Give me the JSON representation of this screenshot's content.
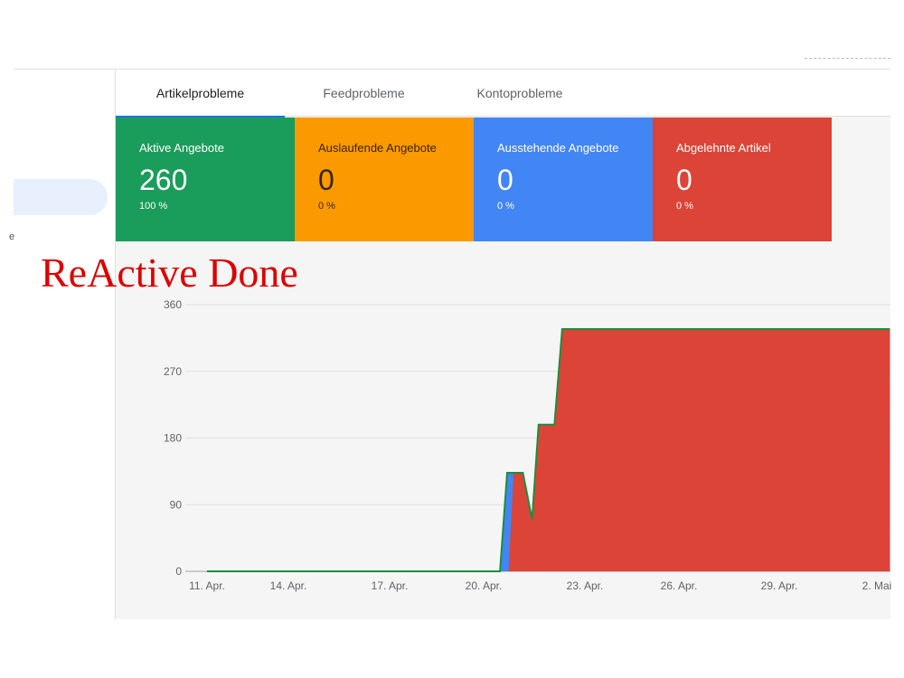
{
  "tabs": [
    {
      "label": "Artikelprobleme",
      "active": true
    },
    {
      "label": "Feedprobleme"
    },
    {
      "label": "Kontoprobleme"
    }
  ],
  "sidebar": {
    "stray_text": "e"
  },
  "cards": [
    {
      "title": "Aktive Angebote",
      "value": "260",
      "percent": "100 %",
      "color": "#1a9c5b",
      "text": "#ffffff"
    },
    {
      "title": "Auslaufende Angebote",
      "value": "0",
      "percent": "0 %",
      "color": "#fb9a00",
      "text": "#3a2400"
    },
    {
      "title": "Ausstehende Angebote",
      "value": "0",
      "percent": "0 %",
      "color": "#4285f4",
      "text": "#ffffff"
    },
    {
      "title": "Abgelehnte Artikel",
      "value": "0",
      "percent": "0 %",
      "color": "#db4437",
      "text": "#ffffff"
    }
  ],
  "overlay": "ReActive Done",
  "chart_data": {
    "type": "area",
    "ylim": [
      0,
      360
    ],
    "yticks": [
      "0",
      "90",
      "180",
      "270",
      "360"
    ],
    "xticks": [
      "11. Apr.",
      "14. Apr.",
      "17. Apr.",
      "20. Apr.",
      "23. Apr.",
      "26. Apr.",
      "29. Apr.",
      "2. Mai"
    ],
    "grid": true,
    "series": [
      {
        "color": "#4285f4",
        "kind": "area",
        "points": [
          [
            "04-11 00:00",
            0
          ],
          [
            "04-20 07:30",
            0
          ],
          [
            "04-20 13:00",
            133
          ],
          [
            "04-21 01:00",
            133
          ],
          [
            "04-21 08:00",
            70
          ],
          [
            "04-21 13:00",
            198
          ],
          [
            "04-22 01:00",
            198
          ],
          [
            "04-22 07:00",
            327
          ],
          [
            "05-02 17:00",
            327
          ]
        ]
      },
      {
        "color": "#db4437",
        "kind": "area",
        "points": [
          [
            "04-11 00:00",
            0
          ],
          [
            "04-20 14:00",
            0
          ],
          [
            "04-20 18:00",
            133
          ],
          [
            "04-21 01:00",
            133
          ],
          [
            "04-21 08:00",
            70
          ],
          [
            "04-21 13:00",
            198
          ],
          [
            "04-22 01:00",
            198
          ],
          [
            "04-22 07:00",
            327
          ],
          [
            "05-02 17:00",
            327
          ]
        ]
      },
      {
        "color": "#1e8e3e",
        "kind": "line",
        "points": [
          [
            "04-11 00:00",
            0
          ],
          [
            "04-20 07:30",
            0
          ],
          [
            "04-20 13:00",
            133
          ],
          [
            "04-21 01:00",
            133
          ],
          [
            "04-21 08:00",
            70
          ],
          [
            "04-21 13:00",
            198
          ],
          [
            "04-22 01:00",
            198
          ],
          [
            "04-22 07:00",
            327
          ],
          [
            "05-02 17:00",
            327
          ]
        ]
      }
    ]
  }
}
